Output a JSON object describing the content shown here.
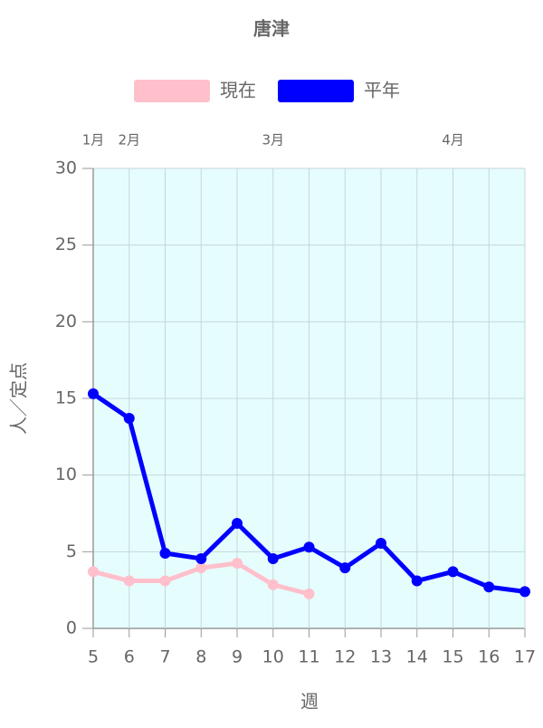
{
  "chart_data": {
    "type": "line",
    "title": "唐津",
    "x": [
      5,
      6,
      7,
      8,
      9,
      10,
      11,
      12,
      13,
      14,
      15,
      16,
      17
    ],
    "series": [
      {
        "name": "現在",
        "color": "#ffc0cb",
        "values": [
          3.7,
          3.1,
          3.1,
          3.95,
          4.25,
          2.85,
          2.25,
          null,
          null,
          null,
          null,
          null,
          null
        ]
      },
      {
        "name": "平年",
        "color": "#0000ff",
        "values": [
          15.3,
          13.7,
          4.9,
          4.55,
          6.85,
          4.55,
          5.3,
          3.95,
          5.55,
          3.1,
          3.7,
          2.7,
          2.4
        ]
      }
    ],
    "xlim": [
      5,
      17
    ],
    "xticks": [
      5,
      6,
      7,
      8,
      9,
      10,
      11,
      12,
      13,
      14,
      15,
      16,
      17
    ],
    "ylim": [
      0,
      30
    ],
    "yticks": [
      0,
      5,
      10,
      15,
      20,
      25,
      30
    ],
    "x_label": "週",
    "y_label": "人／定点",
    "month_labels": [
      {
        "value": 5,
        "label": "1月"
      },
      {
        "value": 6,
        "label": "2月"
      },
      {
        "value": 10,
        "label": "3月"
      },
      {
        "value": 15,
        "label": "4月"
      }
    ],
    "grid": true,
    "legend": "top",
    "background": "#e6fdfe"
  }
}
